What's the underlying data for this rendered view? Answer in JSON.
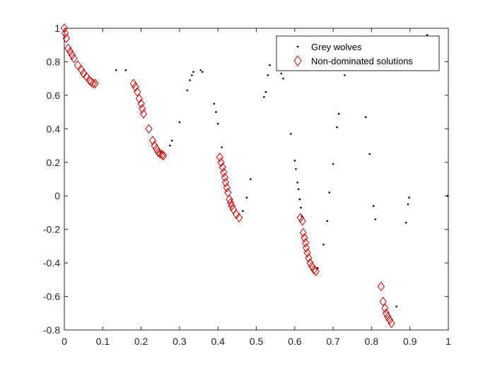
{
  "chart_data": {
    "type": "scatter",
    "title": "",
    "xlabel": "",
    "ylabel": "",
    "xlim": [
      0,
      1
    ],
    "ylim": [
      -0.8,
      1
    ],
    "x_ticks": [
      "0",
      "0.1",
      "0.2",
      "0.3",
      "0.4",
      "0.5",
      "0.6",
      "0.7",
      "0.8",
      "0.9",
      "1"
    ],
    "y_ticks": [
      "-0.8",
      "-0.6",
      "-0.4",
      "-0.2",
      "0",
      "0.2",
      "0.4",
      "0.6",
      "0.8",
      "1"
    ],
    "grid": false,
    "legend_position": "top-right",
    "series": [
      {
        "name": "Grey wolves",
        "marker": "dot",
        "color": "#000000",
        "points": [
          [
            0.135,
            0.75
          ],
          [
            0.16,
            0.75
          ],
          [
            0.25,
            0.26
          ],
          [
            0.275,
            0.3
          ],
          [
            0.28,
            0.33
          ],
          [
            0.3,
            0.44
          ],
          [
            0.32,
            0.63
          ],
          [
            0.327,
            0.69
          ],
          [
            0.332,
            0.72
          ],
          [
            0.336,
            0.74
          ],
          [
            0.355,
            0.75
          ],
          [
            0.36,
            0.74
          ],
          [
            0.39,
            0.55
          ],
          [
            0.395,
            0.5
          ],
          [
            0.4,
            0.43
          ],
          [
            0.41,
            0.29
          ],
          [
            0.465,
            -0.09
          ],
          [
            0.475,
            -0.01
          ],
          [
            0.485,
            0.1
          ],
          [
            0.52,
            0.59
          ],
          [
            0.525,
            0.62
          ],
          [
            0.53,
            0.72
          ],
          [
            0.535,
            0.78
          ],
          [
            0.565,
            0.73
          ],
          [
            0.57,
            0.7
          ],
          [
            0.59,
            0.37
          ],
          [
            0.6,
            0.21
          ],
          [
            0.603,
            0.16
          ],
          [
            0.607,
            0.08
          ],
          [
            0.61,
            0.04
          ],
          [
            0.613,
            -0.02
          ],
          [
            0.616,
            -0.07
          ],
          [
            0.618,
            -0.12
          ],
          [
            0.66,
            -0.43
          ],
          [
            0.675,
            -0.29
          ],
          [
            0.685,
            -0.15
          ],
          [
            0.69,
            0.02
          ],
          [
            0.7,
            0.19
          ],
          [
            0.71,
            0.41
          ],
          [
            0.715,
            0.49
          ],
          [
            0.73,
            0.72
          ],
          [
            0.785,
            0.47
          ],
          [
            0.795,
            0.25
          ],
          [
            0.805,
            -0.06
          ],
          [
            0.81,
            -0.14
          ],
          [
            0.865,
            -0.66
          ],
          [
            0.89,
            -0.16
          ],
          [
            0.895,
            -0.05
          ],
          [
            0.898,
            -0.01
          ],
          [
            0.945,
            0.96
          ],
          [
            0.998,
            0.0
          ]
        ]
      },
      {
        "name": "Non-dominated solutions",
        "marker": "diamond",
        "color": "#cc0000",
        "points": [
          [
            0.0,
            1.0
          ],
          [
            0.002,
            0.97
          ],
          [
            0.005,
            0.94
          ],
          [
            0.01,
            0.88
          ],
          [
            0.015,
            0.86
          ],
          [
            0.02,
            0.84
          ],
          [
            0.025,
            0.82
          ],
          [
            0.035,
            0.78
          ],
          [
            0.045,
            0.75
          ],
          [
            0.05,
            0.73
          ],
          [
            0.058,
            0.71
          ],
          [
            0.065,
            0.69
          ],
          [
            0.07,
            0.68
          ],
          [
            0.075,
            0.67
          ],
          [
            0.08,
            0.67
          ],
          [
            0.18,
            0.67
          ],
          [
            0.185,
            0.65
          ],
          [
            0.19,
            0.62
          ],
          [
            0.195,
            0.58
          ],
          [
            0.2,
            0.55
          ],
          [
            0.203,
            0.52
          ],
          [
            0.206,
            0.49
          ],
          [
            0.22,
            0.4
          ],
          [
            0.23,
            0.33
          ],
          [
            0.235,
            0.3
          ],
          [
            0.24,
            0.28
          ],
          [
            0.245,
            0.26
          ],
          [
            0.25,
            0.25
          ],
          [
            0.255,
            0.245
          ],
          [
            0.258,
            0.24
          ],
          [
            0.405,
            0.23
          ],
          [
            0.408,
            0.2
          ],
          [
            0.412,
            0.17
          ],
          [
            0.415,
            0.14
          ],
          [
            0.418,
            0.11
          ],
          [
            0.42,
            0.08
          ],
          [
            0.423,
            0.05
          ],
          [
            0.426,
            0.02
          ],
          [
            0.43,
            -0.02
          ],
          [
            0.433,
            -0.04
          ],
          [
            0.436,
            -0.06
          ],
          [
            0.44,
            -0.08
          ],
          [
            0.448,
            -0.11
          ],
          [
            0.455,
            -0.13
          ],
          [
            0.615,
            -0.13
          ],
          [
            0.62,
            -0.15
          ],
          [
            0.622,
            -0.22
          ],
          [
            0.625,
            -0.25
          ],
          [
            0.628,
            -0.28
          ],
          [
            0.63,
            -0.31
          ],
          [
            0.633,
            -0.34
          ],
          [
            0.636,
            -0.37
          ],
          [
            0.64,
            -0.4
          ],
          [
            0.645,
            -0.42
          ],
          [
            0.65,
            -0.44
          ],
          [
            0.655,
            -0.45
          ],
          [
            0.825,
            -0.54
          ],
          [
            0.83,
            -0.63
          ],
          [
            0.835,
            -0.67
          ],
          [
            0.838,
            -0.7
          ],
          [
            0.842,
            -0.72
          ],
          [
            0.847,
            -0.74
          ],
          [
            0.852,
            -0.76
          ]
        ]
      }
    ]
  }
}
